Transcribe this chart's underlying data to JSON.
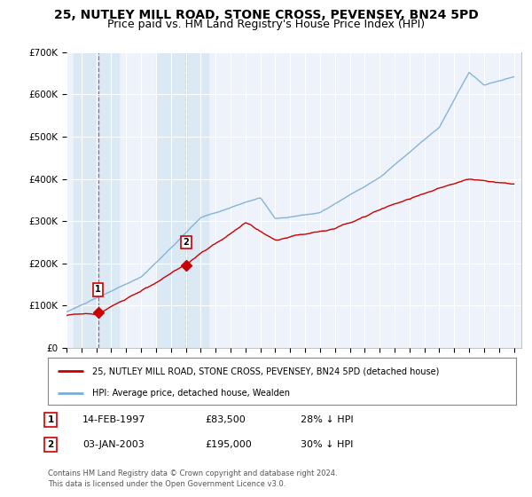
{
  "title": "25, NUTLEY MILL ROAD, STONE CROSS, PEVENSEY, BN24 5PD",
  "subtitle": "Price paid vs. HM Land Registry's House Price Index (HPI)",
  "ylim": [
    0,
    700000
  ],
  "yticks": [
    0,
    100000,
    200000,
    300000,
    400000,
    500000,
    600000,
    700000
  ],
  "ytick_labels": [
    "£0",
    "£100K",
    "£200K",
    "£300K",
    "£400K",
    "£500K",
    "£600K",
    "£700K"
  ],
  "xlim": [
    1995.0,
    2025.5
  ],
  "background_color": "#ffffff",
  "plot_bg_color": "#eef2fa",
  "grid_color": "#ffffff",
  "red_line_color": "#cc0000",
  "blue_line_color": "#7aadd4",
  "transaction1_x": 1997.12,
  "transaction1_y": 83500,
  "transaction2_x": 2003.02,
  "transaction2_y": 195000,
  "shade1_xmin": 1995.5,
  "shade1_xmax": 1998.5,
  "shade2_xmin": 2001.0,
  "shade2_xmax": 2004.5,
  "legend_line1": "25, NUTLEY MILL ROAD, STONE CROSS, PEVENSEY, BN24 5PD (detached house)",
  "legend_line2": "HPI: Average price, detached house, Wealden",
  "table_row1": [
    "1",
    "14-FEB-1997",
    "£83,500",
    "28% ↓ HPI"
  ],
  "table_row2": [
    "2",
    "03-JAN-2003",
    "£195,000",
    "30% ↓ HPI"
  ],
  "footnote": "Contains HM Land Registry data © Crown copyright and database right 2024.\nThis data is licensed under the Open Government Licence v3.0.",
  "title_fontsize": 10,
  "subtitle_fontsize": 9
}
